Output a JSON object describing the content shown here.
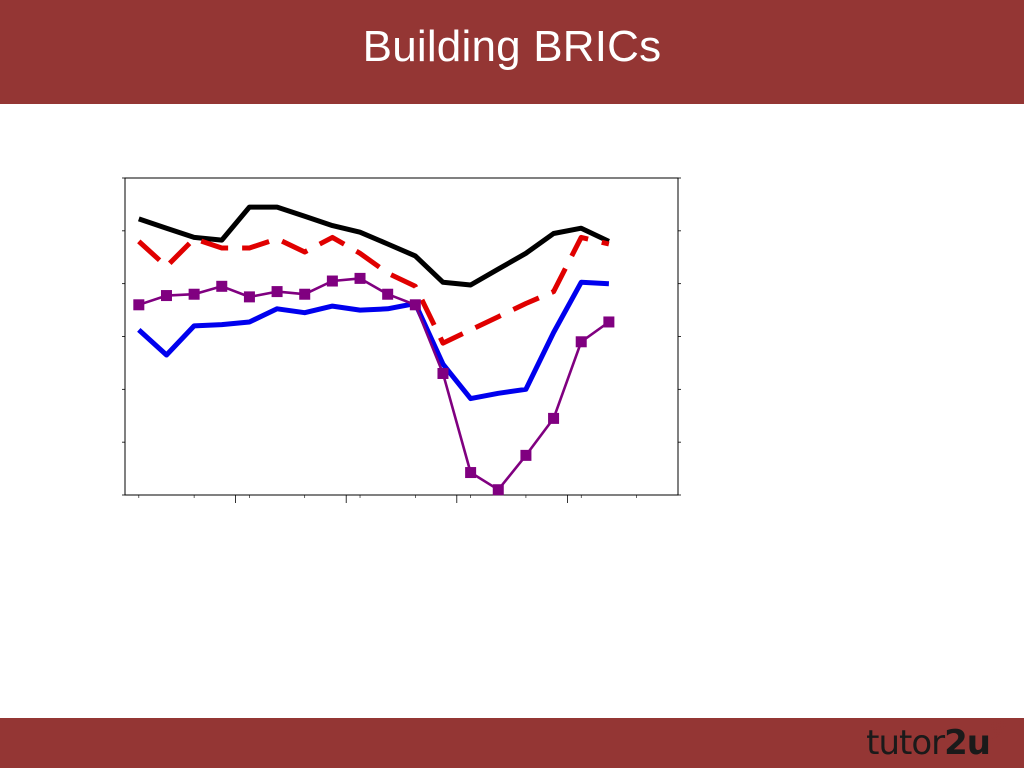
{
  "slide": {
    "title": "Building BRICs"
  },
  "footer": {
    "logo_light": "tutor",
    "logo_bold": "2u"
  },
  "colors": {
    "band": "#943634",
    "logo_mark": "#943634",
    "frame": "#000000",
    "grid": "#aaaaaa"
  },
  "chart_data": {
    "type": "line",
    "title": "",
    "subtitle": "",
    "xlabel": "",
    "ylabel": "",
    "x": [
      1,
      2,
      3,
      4,
      5,
      6,
      7,
      8,
      9,
      10,
      11,
      12,
      13,
      14,
      15,
      16,
      17,
      18
    ],
    "xlim": [
      0.5,
      20.5
    ],
    "ylim": [
      -13,
      11
    ],
    "grid": true,
    "series": [
      {
        "style": "solid-thick",
        "color": "#000000",
        "values": [
          7.9,
          7.2,
          6.5,
          6.3,
          8.8,
          8.8,
          8.1,
          7.4,
          6.9,
          6.0,
          5.1,
          3.1,
          2.9,
          4.1,
          5.3,
          6.8,
          7.2,
          6.2
        ]
      },
      {
        "style": "dashed-thick",
        "color": "#e00000",
        "values": [
          6.2,
          4.3,
          6.4,
          5.7,
          5.7,
          6.4,
          5.4,
          6.5,
          5.3,
          3.8,
          2.8,
          -1.5,
          -0.5,
          0.5,
          1.5,
          2.4,
          6.5,
          6.0
        ]
      },
      {
        "style": "solid-thick",
        "color": "#0000ee",
        "values": [
          -0.5,
          -2.4,
          -0.2,
          -0.1,
          0.1,
          1.1,
          0.8,
          1.3,
          1.0,
          1.1,
          1.5,
          -3.1,
          -5.7,
          -5.3,
          -5.0,
          -0.7,
          3.1,
          3.0
        ]
      },
      {
        "style": "marker-square",
        "color": "#800080",
        "values": [
          1.4,
          2.1,
          2.2,
          2.8,
          2.0,
          2.4,
          2.2,
          3.2,
          3.4,
          2.2,
          1.4,
          -3.8,
          -11.3,
          -12.6,
          -10.0,
          -7.2,
          -1.4,
          0.1
        ]
      }
    ]
  }
}
